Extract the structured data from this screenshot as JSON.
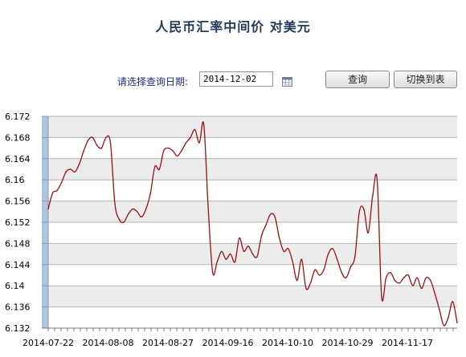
{
  "page": {
    "title": "人民币汇率中间价  对美元",
    "date_label": "请选择查询日期:",
    "date_value": "2014-12-02",
    "query_button": "查询",
    "switch_button": "切换到表"
  },
  "colors": {
    "line": "#9a1010",
    "grid": "#b5b5b5",
    "band_light": "#ffffff",
    "band_dark": "#ececec",
    "axis_bar": "#b0c4de"
  },
  "icons": [
    "calendar-icon"
  ],
  "chart_data": {
    "type": "line",
    "title": "",
    "xlabel": "",
    "ylabel": "",
    "ylim": [
      6.132,
      6.172
    ],
    "y_ticks": [
      "6.132",
      "6.136",
      "6.14",
      "6.144",
      "6.148",
      "6.152",
      "6.156",
      "6.16",
      "6.164",
      "6.168",
      "6.172"
    ],
    "x_ticks": [
      "2014-07-22",
      "2014-08-08",
      "2014-08-27",
      "2014-09-16",
      "2014-10-10",
      "2014-10-29",
      "2014-11-17"
    ],
    "series": [
      {
        "values": [
          6.1545,
          6.1575,
          6.158,
          6.1595,
          6.1615,
          6.162,
          6.1615,
          6.163,
          6.1655,
          6.1675,
          6.168,
          6.1665,
          6.166,
          6.168,
          6.167,
          6.1555,
          6.1525,
          6.152,
          6.1535,
          6.1545,
          6.154,
          6.153,
          6.1545,
          6.1575,
          6.1625,
          6.162,
          6.1655,
          6.166,
          6.1655,
          6.1645,
          6.1655,
          6.167,
          6.168,
          6.1695,
          6.167,
          6.1705,
          6.1545,
          6.1425,
          6.1445,
          6.1465,
          6.145,
          6.146,
          6.1445,
          6.149,
          6.1465,
          6.1475,
          6.146,
          6.1455,
          6.1495,
          6.1515,
          6.1535,
          6.153,
          6.149,
          6.1465,
          6.147,
          6.1445,
          6.141,
          6.145,
          6.1395,
          6.1405,
          6.143,
          6.142,
          6.143,
          6.146,
          6.147,
          6.145,
          6.1425,
          6.1415,
          6.1435,
          6.1455,
          6.154,
          6.1545,
          6.15,
          6.157,
          6.16,
          6.138,
          6.1415,
          6.1425,
          6.141,
          6.1405,
          6.1415,
          6.142,
          6.14,
          6.1415,
          6.1395,
          6.1415,
          6.141,
          6.1385,
          6.1355,
          6.1325,
          6.134,
          6.137,
          6.133
        ]
      }
    ]
  }
}
